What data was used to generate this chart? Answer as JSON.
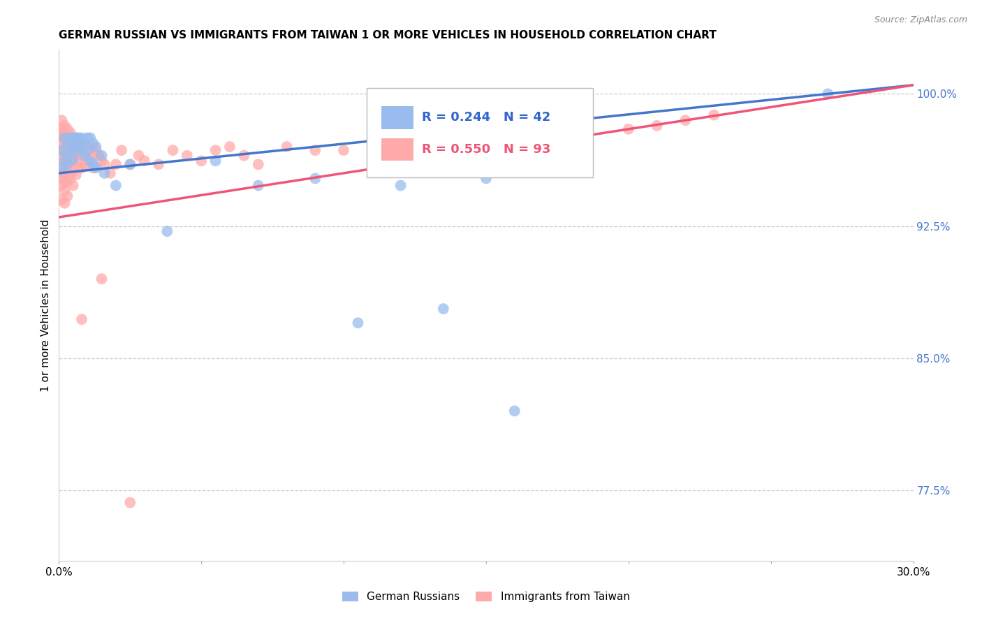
{
  "title": "GERMAN RUSSIAN VS IMMIGRANTS FROM TAIWAN 1 OR MORE VEHICLES IN HOUSEHOLD CORRELATION CHART",
  "source": "Source: ZipAtlas.com",
  "ylabel": "1 or more Vehicles in Household",
  "yaxis_labels": [
    "100.0%",
    "92.5%",
    "85.0%",
    "77.5%"
  ],
  "yaxis_values": [
    1.0,
    0.925,
    0.85,
    0.775
  ],
  "xmin": 0.0,
  "xmax": 0.3,
  "ymin": 0.735,
  "ymax": 1.025,
  "legend_blue_r": "R = 0.244",
  "legend_blue_n": "N = 42",
  "legend_pink_r": "R = 0.550",
  "legend_pink_n": "N = 93",
  "legend_blue_label": "German Russians",
  "legend_pink_label": "Immigrants from Taiwan",
  "blue_color": "#99BBEE",
  "pink_color": "#FFAAAA",
  "blue_line_color": "#4477CC",
  "pink_line_color": "#EE5577",
  "blue_x": [
    0.001,
    0.001,
    0.002,
    0.002,
    0.003,
    0.003,
    0.003,
    0.004,
    0.004,
    0.005,
    0.005,
    0.005,
    0.006,
    0.006,
    0.007,
    0.007,
    0.008,
    0.008,
    0.009,
    0.009,
    0.01,
    0.01,
    0.011,
    0.011,
    0.012,
    0.012,
    0.013,
    0.013,
    0.015,
    0.016,
    0.02,
    0.025,
    0.038,
    0.055,
    0.07,
    0.09,
    0.105,
    0.12,
    0.135,
    0.15,
    0.27,
    0.16
  ],
  "blue_y": [
    0.968,
    0.958,
    0.975,
    0.962,
    0.972,
    0.965,
    0.96,
    0.975,
    0.968,
    0.975,
    0.97,
    0.963,
    0.975,
    0.97,
    0.975,
    0.968,
    0.975,
    0.97,
    0.972,
    0.965,
    0.975,
    0.968,
    0.975,
    0.962,
    0.972,
    0.96,
    0.97,
    0.958,
    0.965,
    0.955,
    0.948,
    0.96,
    0.922,
    0.962,
    0.948,
    0.952,
    0.87,
    0.948,
    0.878,
    0.952,
    1.0,
    0.82
  ],
  "pink_x": [
    0.001,
    0.001,
    0.001,
    0.001,
    0.001,
    0.001,
    0.001,
    0.001,
    0.001,
    0.001,
    0.001,
    0.001,
    0.002,
    0.002,
    0.002,
    0.002,
    0.002,
    0.002,
    0.002,
    0.002,
    0.002,
    0.002,
    0.003,
    0.003,
    0.003,
    0.003,
    0.003,
    0.003,
    0.003,
    0.003,
    0.004,
    0.004,
    0.004,
    0.004,
    0.004,
    0.005,
    0.005,
    0.005,
    0.005,
    0.005,
    0.006,
    0.006,
    0.006,
    0.006,
    0.007,
    0.007,
    0.007,
    0.008,
    0.008,
    0.008,
    0.009,
    0.009,
    0.01,
    0.01,
    0.011,
    0.012,
    0.012,
    0.013,
    0.014,
    0.015,
    0.016,
    0.018,
    0.02,
    0.022,
    0.025,
    0.028,
    0.03,
    0.035,
    0.04,
    0.045,
    0.05,
    0.055,
    0.06,
    0.065,
    0.07,
    0.08,
    0.09,
    0.1,
    0.11,
    0.12,
    0.13,
    0.14,
    0.15,
    0.16,
    0.17,
    0.18,
    0.2,
    0.21,
    0.22,
    0.23,
    0.008,
    0.015,
    0.025
  ],
  "pink_y": [
    0.985,
    0.98,
    0.978,
    0.975,
    0.972,
    0.968,
    0.965,
    0.96,
    0.955,
    0.952,
    0.948,
    0.94,
    0.982,
    0.978,
    0.975,
    0.97,
    0.965,
    0.96,
    0.955,
    0.95,
    0.945,
    0.938,
    0.98,
    0.975,
    0.97,
    0.965,
    0.96,
    0.955,
    0.95,
    0.942,
    0.978,
    0.972,
    0.966,
    0.96,
    0.952,
    0.975,
    0.968,
    0.962,
    0.956,
    0.948,
    0.975,
    0.968,
    0.962,
    0.954,
    0.972,
    0.965,
    0.958,
    0.972,
    0.965,
    0.958,
    0.968,
    0.96,
    0.97,
    0.962,
    0.968,
    0.965,
    0.958,
    0.968,
    0.965,
    0.962,
    0.96,
    0.955,
    0.96,
    0.968,
    0.96,
    0.965,
    0.962,
    0.96,
    0.968,
    0.965,
    0.962,
    0.968,
    0.97,
    0.965,
    0.96,
    0.97,
    0.968,
    0.968,
    0.972,
    0.97,
    0.975,
    0.972,
    0.97,
    0.972,
    0.975,
    0.978,
    0.98,
    0.982,
    0.985,
    0.988,
    0.872,
    0.895,
    0.768
  ],
  "blue_trendline_x": [
    0.0,
    0.3
  ],
  "blue_trendline_y": [
    0.955,
    1.005
  ],
  "pink_trendline_x": [
    0.0,
    0.3
  ],
  "pink_trendline_y": [
    0.93,
    1.005
  ]
}
